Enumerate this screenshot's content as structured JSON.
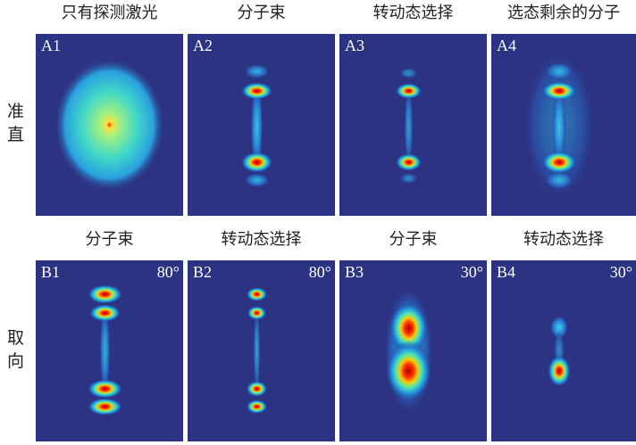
{
  "rows": [
    {
      "label": "准直",
      "panels": [
        {
          "title": "只有探测激光",
          "id": "A1"
        },
        {
          "title": "分子束",
          "id": "A2"
        },
        {
          "title": "转动态选择",
          "id": "A3"
        },
        {
          "title": "选态剩余的分子",
          "id": "A4"
        }
      ]
    },
    {
      "label": "取向",
      "panels": [
        {
          "title": "分子束",
          "id": "B1",
          "angle": "80°"
        },
        {
          "title": "转动态选择",
          "id": "B2",
          "angle": "80°"
        },
        {
          "title": "分子束",
          "id": "B3",
          "angle": "30°"
        },
        {
          "title": "转动态选择",
          "id": "B4",
          "angle": "30°"
        }
      ]
    }
  ]
}
